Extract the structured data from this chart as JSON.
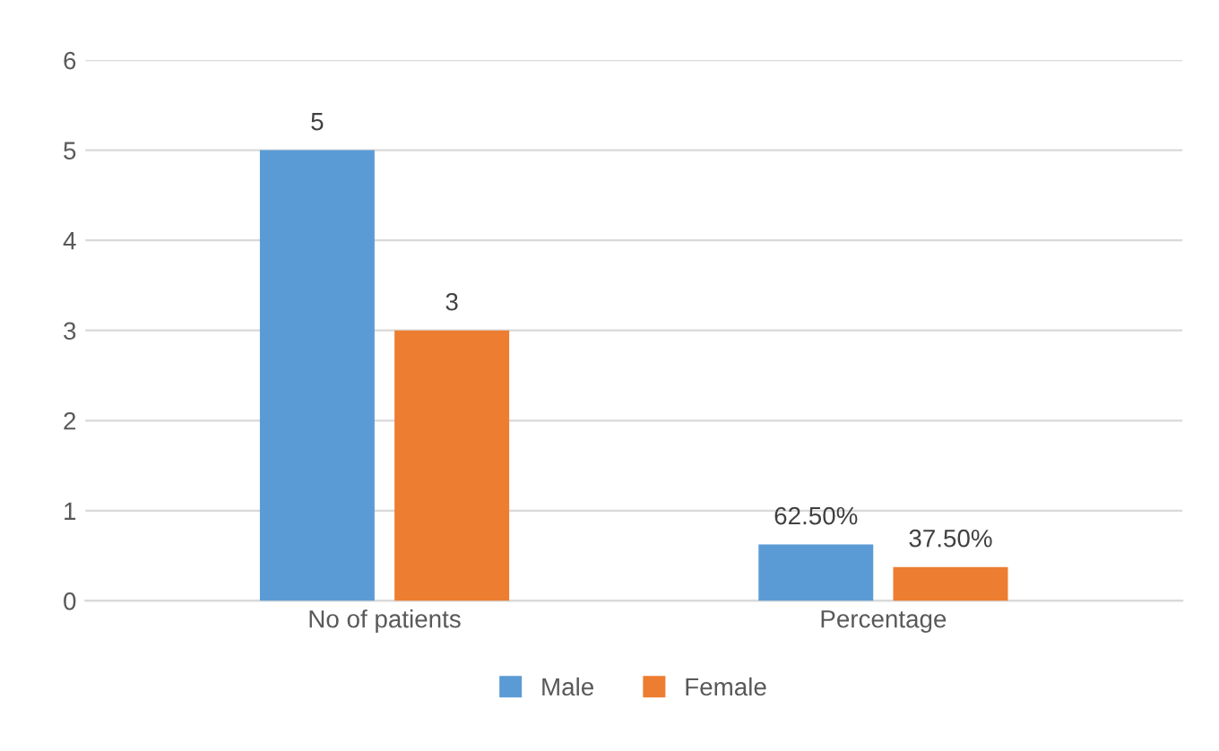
{
  "chart_data": {
    "type": "bar",
    "categories": [
      "No of patients",
      "Percentage"
    ],
    "series": [
      {
        "name": "Male",
        "color": "#5b9bd5",
        "values": [
          5,
          0.625
        ],
        "value_labels": [
          "5",
          "62.50%"
        ]
      },
      {
        "name": "Female",
        "color": "#ed7d31",
        "values": [
          3,
          0.375
        ],
        "value_labels": [
          "3",
          "37.50%"
        ]
      }
    ],
    "ylim": [
      0,
      6
    ],
    "yticks": [
      0,
      1,
      2,
      3,
      4,
      5,
      6
    ],
    "grid": "y",
    "legend": "bottom"
  }
}
